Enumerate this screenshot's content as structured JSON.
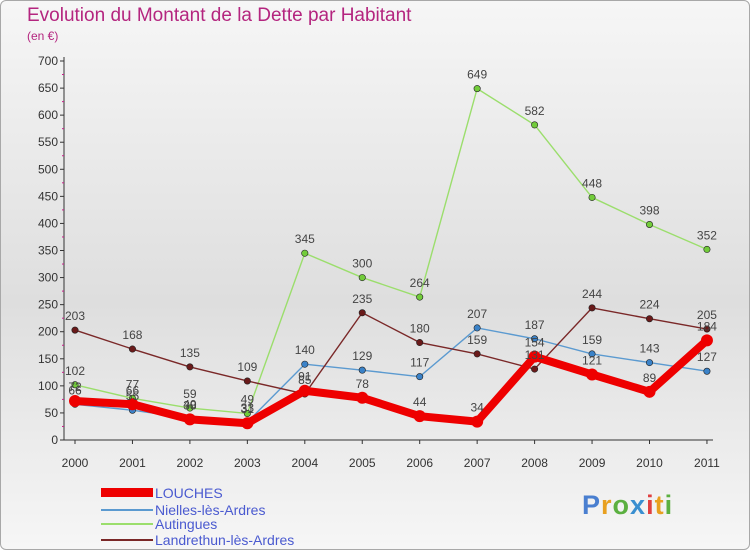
{
  "title": "Evolution du Montant de la Dette par Habitant",
  "unit": "(en €)",
  "logo": {
    "text": "Proxiti",
    "letter_colors": [
      "#4a7fd0",
      "#e8a020",
      "#5bb040",
      "#3a8fd0",
      "#e04040",
      "#e8a020",
      "#5bb040"
    ]
  },
  "chart_data": {
    "type": "line",
    "x": [
      "2000",
      "2001",
      "2002",
      "2003",
      "2004",
      "2005",
      "2006",
      "2007",
      "2008",
      "2009",
      "2010",
      "2011"
    ],
    "ylim": [
      0,
      700
    ],
    "yticks": [
      0,
      50,
      100,
      150,
      200,
      250,
      300,
      350,
      400,
      450,
      500,
      550,
      600,
      650,
      700
    ],
    "grid": false,
    "legend_position": "bottom-left",
    "series": [
      {
        "name": "Nielles-lès-Ardres",
        "color": "#5b9ad0",
        "marker": "#3a82c8",
        "width": 1.4,
        "values": [
          66,
          55,
          40,
          33,
          140,
          129,
          117,
          207,
          187,
          159,
          143,
          127
        ]
      },
      {
        "name": "Autingues",
        "color": "#9bde6c",
        "marker": "#72cc3a",
        "width": 1.4,
        "values": [
          102,
          77,
          59,
          49,
          345,
          300,
          264,
          649,
          582,
          448,
          398,
          352
        ]
      },
      {
        "name": "Landrethun-lès-Ardres",
        "color": "#7a2828",
        "marker": "#6a1a1a",
        "width": 1.4,
        "values": [
          203,
          168,
          135,
          109,
          85,
          235,
          180,
          159,
          131,
          244,
          224,
          205
        ]
      },
      {
        "name": "LOUCHES",
        "color": "#ee0000",
        "marker": "#ee0000",
        "width": 8,
        "values": [
          72,
          66,
          38,
          31,
          91,
          78,
          44,
          34,
          154,
          121,
          89,
          184
        ]
      }
    ],
    "legend_order": [
      "LOUCHES",
      "Nielles-lès-Ardres",
      "Autingues",
      "Landrethun-lès-Ardres"
    ]
  }
}
